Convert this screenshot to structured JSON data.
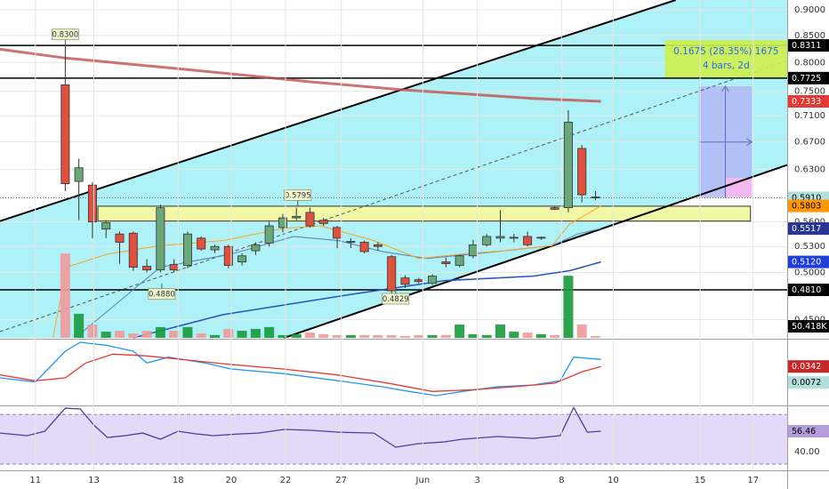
{
  "chart_data": [
    {
      "type": "candlestick",
      "open": [
        0.761,
        0.613,
        0.608,
        0.551,
        0.545,
        0.546,
        0.507,
        0.503,
        0.509,
        0.508,
        0.54,
        0.526,
        0.53,
        0.512,
        0.525,
        0.534,
        0.553,
        0.565,
        0.572,
        0.562,
        0.553,
        0.535,
        0.535,
        0.532,
        0.518,
        0.494,
        0.492,
        0.488,
        0.512,
        0.508,
        0.519,
        0.532,
        0.54,
        0.54,
        0.542,
        0.54,
        0.578,
        0.578,
        0.66,
        0.592
      ],
      "high": [
        0.83,
        0.645,
        0.612,
        0.562,
        0.548,
        0.548,
        0.515,
        0.582,
        0.515,
        0.548,
        0.542,
        0.532,
        0.532,
        0.522,
        0.535,
        0.56,
        0.57,
        0.578,
        0.578,
        0.565,
        0.555,
        0.54,
        0.537,
        0.535,
        0.52,
        0.497,
        0.494,
        0.498,
        0.517,
        0.52,
        0.538,
        0.545,
        0.575,
        0.545,
        0.548,
        0.542,
        0.58,
        0.719,
        0.665,
        0.6
      ],
      "low": [
        0.6,
        0.562,
        0.54,
        0.54,
        0.51,
        0.502,
        0.5,
        0.5,
        0.5,
        0.505,
        0.525,
        0.522,
        0.505,
        0.508,
        0.52,
        0.53,
        0.547,
        0.562,
        0.553,
        0.555,
        0.528,
        0.528,
        0.522,
        0.525,
        0.476,
        0.483,
        0.488,
        0.486,
        0.506,
        0.506,
        0.516,
        0.53,
        0.535,
        0.535,
        0.53,
        0.538,
        0.575,
        0.572,
        0.585,
        0.588
      ],
      "close": [
        0.61,
        0.632,
        0.56,
        0.559,
        0.535,
        0.506,
        0.503,
        0.578,
        0.503,
        0.545,
        0.527,
        0.53,
        0.508,
        0.519,
        0.532,
        0.555,
        0.565,
        0.567,
        0.555,
        0.558,
        0.54,
        0.536,
        0.524,
        0.53,
        0.48,
        0.487,
        0.49,
        0.496,
        0.51,
        0.519,
        0.532,
        0.542,
        0.542,
        0.541,
        0.532,
        0.541,
        0.576,
        0.7,
        0.595,
        0.591
      ],
      "volume": [
        368000,
        105000,
        58000,
        27000,
        31000,
        19000,
        31000,
        47000,
        31000,
        47000,
        19000,
        12000,
        39000,
        31000,
        39000,
        47000,
        12000,
        16000,
        23000,
        16000,
        12000,
        12000,
        12000,
        12000,
        12000,
        8000,
        12000,
        12000,
        12000,
        58000,
        16000,
        12000,
        58000,
        27000,
        23000,
        16000,
        12000,
        271000,
        58000,
        8000
      ],
      "up_color": "#6aa77a",
      "down_color": "#e0503f",
      "volume_up_color": "#179a3b",
      "volume_down_color": "#ef9a9a",
      "xlim": [
        -4.8,
        53.1
      ],
      "xticks": [
        {
          "value": -2.2,
          "label": "11"
        },
        {
          "value": 2.1,
          "label": "13"
        },
        {
          "value": 8.3,
          "label": "18"
        },
        {
          "value": 12.2,
          "label": "20"
        },
        {
          "value": 16.2,
          "label": "22"
        },
        {
          "value": 20.3,
          "label": "27"
        },
        {
          "value": 26.3,
          "label": "Jun"
        },
        {
          "value": 30.3,
          "label": "3"
        },
        {
          "value": 36.5,
          "label": "8"
        },
        {
          "value": 40.3,
          "label": "10"
        },
        {
          "value": 46.7,
          "label": "15"
        },
        {
          "value": 50.6,
          "label": "17"
        }
      ],
      "ylim": [
        0.432,
        0.92
      ],
      "log_scale": true,
      "grid": true,
      "yticks": [
        {
          "value": 0.9,
          "label": "0.9000"
        },
        {
          "value": 0.85,
          "label": "0.8500"
        },
        {
          "value": 0.8,
          "label": "0.8000"
        },
        {
          "value": 0.75,
          "label": "0.7500"
        },
        {
          "value": 0.71,
          "label": "0.7100"
        },
        {
          "value": 0.67,
          "label": "0.6700"
        },
        {
          "value": 0.63,
          "label": "0.6300"
        },
        {
          "value": 0.56,
          "label": "0.5600"
        },
        {
          "value": 0.53,
          "label": "0.5300"
        },
        {
          "value": 0.5,
          "label": "0.5000"
        },
        {
          "value": 0.45,
          "label": "0.4500"
        }
      ],
      "volume_ylim": [
        0,
        388000
      ],
      "channel_color": "#aef1f7",
      "trendlines": [
        {
          "color": "#000000",
          "x": [
            -4.8,
            44.9
          ],
          "values": [
            0.561,
            0.92
          ]
        },
        {
          "color": "#000000",
          "x": [
            16.1,
            53.1
          ],
          "values": [
            0.432,
            0.636
          ]
        },
        {
          "color": "#555555",
          "dashed": true,
          "x": [
            -4.8,
            53.1
          ],
          "values": [
            0.438,
            0.803
          ]
        }
      ],
      "overlays": [
        {
          "color": "#c0504d",
          "width": 3,
          "x": [
            -4.8,
            0,
            8.3,
            18.1,
            24.6,
            34.4,
            39.4
          ],
          "values": [
            0.824,
            0.808,
            0.789,
            0.766,
            0.753,
            0.738,
            0.7333
          ]
        },
        {
          "color": "#2a52be",
          "width": 1.5,
          "x": [
            5,
            11.6,
            21.4,
            27.9,
            34.4,
            37.1,
            39.4
          ],
          "values": [
            0.432,
            0.455,
            0.477,
            0.491,
            0.496,
            0.502,
            0.512
          ]
        },
        {
          "color": "#5c7cba",
          "width": 1,
          "x": [
            1.1,
            7,
            12.2,
            16.8,
            20.1,
            23.3,
            26.6,
            31.2,
            35.8,
            37.7,
            39.4
          ],
          "values": [
            0.436,
            0.506,
            0.521,
            0.542,
            0.537,
            0.524,
            0.516,
            0.523,
            0.531,
            0.545,
            0.5517
          ]
        },
        {
          "color": "#f5a623",
          "width": 1,
          "x": [
            -0.9,
            0.1,
            3.1,
            7,
            11.6,
            16.1,
            18.8,
            22.7,
            26,
            29.2,
            33.1,
            35.8,
            37.1,
            39.4
          ],
          "values": [
            0.432,
            0.506,
            0.521,
            0.531,
            0.537,
            0.552,
            0.555,
            0.537,
            0.516,
            0.521,
            0.526,
            0.531,
            0.557,
            0.5803
          ]
        }
      ],
      "zone": {
        "x": [
          2.4,
          50.4
        ],
        "range": [
          0.561,
          0.58
        ],
        "color": "#f2f7a6"
      },
      "measure": {
        "x": [
          46.6,
          50.5
        ],
        "range": [
          0.591,
          0.7585
        ],
        "shade": [
          0.591,
          0.618
        ],
        "text": [
          "0.1675 (28.35%) 1675",
          "4 bars, 2d"
        ]
      },
      "callouts": [
        {
          "x": 0,
          "value": 0.83,
          "label": "0.8300",
          "place": "above"
        },
        {
          "x": 17.1,
          "value": 0.5795,
          "place": "above"
        },
        {
          "x": 7.1,
          "value": 0.488,
          "label": "0.4880",
          "place": "below"
        },
        {
          "x": 24.3,
          "value": 0.4829,
          "place": "below"
        }
      ],
      "tags": [
        {
          "value": 0.8311,
          "bg": "#000000",
          "fg": "#ffffff",
          "line": "solid"
        },
        {
          "value": 0.7725,
          "bg": "#000000",
          "fg": "#ffffff",
          "line": "solid"
        },
        {
          "value": 0.7333,
          "bg": "#e53935",
          "fg": "#ffffff"
        },
        {
          "value": 0.591,
          "label": "0.5910",
          "bg": "#b2dfdb",
          "fg": "#000000",
          "line": "dotted"
        },
        {
          "value": 0.5803,
          "bg": "#ff9800",
          "fg": "#000000"
        },
        {
          "value": 0.5517,
          "bg": "#283593",
          "fg": "#ffffff"
        },
        {
          "value": 0.512,
          "label": "0.5120",
          "bg": "#1e40d8",
          "fg": "#ffffff"
        },
        {
          "value": 0.481,
          "label": "0.4810",
          "bg": "#000000",
          "fg": "#ffffff",
          "line": "solid"
        },
        {
          "value": 50418,
          "label": "50.418K",
          "bg": "#000000",
          "fg": "#ffffff",
          "axis": "volume"
        }
      ]
    },
    {
      "type": "line",
      "ylim": [
        -0.03,
        0.078
      ],
      "series": [
        {
          "color": "#2196f3",
          "x": [
            -4.8,
            -2.2,
            0,
            1.1,
            3,
            5,
            6,
            7.6,
            10.3,
            12.2,
            16.1,
            20.1,
            23.3,
            25.3,
            27.3,
            29.2,
            31.8,
            34.4,
            36.4,
            37.4,
            39.4
          ],
          "values": [
            0.015,
            0.008,
            0.06,
            0.075,
            0.07,
            0.06,
            0.04,
            0.05,
            0.04,
            0.03,
            0.022,
            0.01,
            0,
            -0.008,
            -0.015,
            -0.008,
            0,
            0.003,
            0.01,
            0.05,
            0.046
          ]
        },
        {
          "color": "#e53935",
          "x": [
            -4.8,
            -2.2,
            0,
            1.5,
            3.5,
            6,
            9,
            12,
            16,
            20,
            24,
            27,
            30,
            33,
            36,
            38,
            39.4
          ],
          "values": [
            0.02,
            0.01,
            0.015,
            0.04,
            0.055,
            0.052,
            0.045,
            0.038,
            0.03,
            0.02,
            0.005,
            -0.008,
            -0.005,
            0,
            0.006,
            0.025,
            0.0342
          ]
        }
      ],
      "tags": [
        {
          "value": 0.0342,
          "bg": "#c62828",
          "fg": "#ffffff"
        },
        {
          "value": 0.0072,
          "bg": "#b2dfdb",
          "fg": "#000000"
        }
      ]
    },
    {
      "type": "line",
      "ylim": [
        25.7,
        75.8
      ],
      "band": [
        30,
        70
      ],
      "band_color": "#e4d9f7",
      "yticks": [
        {
          "value": 40,
          "label": "40.00"
        }
      ],
      "series": [
        {
          "color": "#4a3f9f",
          "x": [
            -4.8,
            -2.8,
            -1.5,
            0,
            1.1,
            2.1,
            3.1,
            4.4,
            5.7,
            7,
            8.3,
            9.6,
            10.9,
            12.9,
            14.2,
            16.1,
            18.1,
            20.1,
            22.7,
            24.3,
            25.9,
            27.9,
            29.2,
            31.8,
            34.4,
            36.4,
            37.4,
            38.4,
            39.4
          ],
          "values": [
            55,
            52.9,
            56.5,
            75,
            74.4,
            61.5,
            51.4,
            52.9,
            55,
            50,
            56.5,
            54.3,
            52.9,
            54.3,
            55,
            57.9,
            57.2,
            55.7,
            55,
            43.6,
            46.4,
            47.9,
            50,
            52.2,
            50.7,
            52.9,
            75.5,
            55.7,
            56.46
          ]
        }
      ],
      "tags": [
        {
          "value": 56.46,
          "bg": "#b39ddb",
          "fg": "#000000"
        }
      ]
    }
  ]
}
